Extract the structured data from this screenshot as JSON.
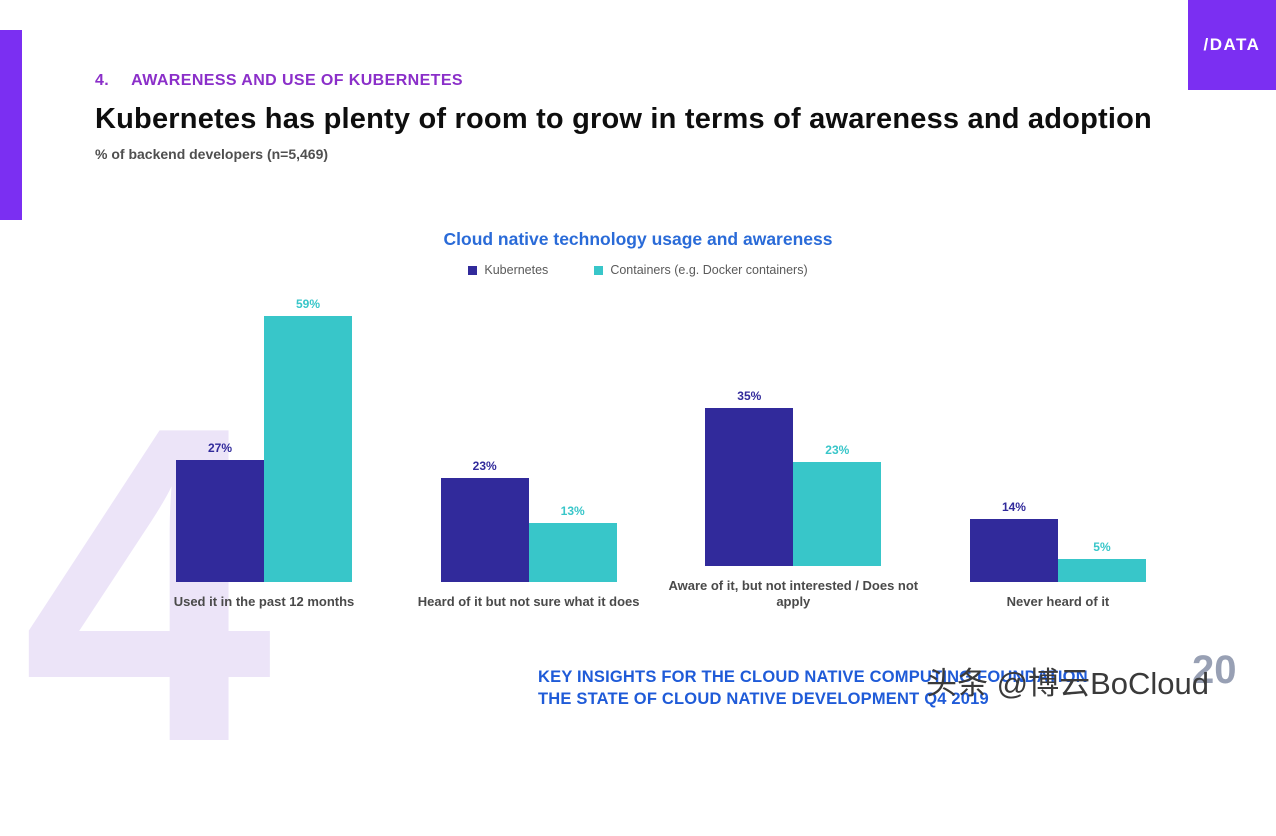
{
  "colors": {
    "brand_purple": "#7B2FF2",
    "section_purple": "#8B2FC9",
    "kubernetes_bar": "#312A9B",
    "containers_bar": "#38C6C9",
    "chart_title_blue": "#2A6BD8",
    "footer_blue": "#1F5BD8",
    "watermark_purple": "#ECE4F8"
  },
  "logo": {
    "text": "/DATA"
  },
  "header": {
    "section_number": "4.",
    "section_title": "AWARENESS AND USE OF KUBERNETES",
    "title": "Kubernetes has plenty of room to grow in terms of awareness and adoption",
    "subtitle": "% of backend developers (n=5,469)"
  },
  "chart_data": {
    "type": "bar",
    "title": "Cloud native technology usage and awareness",
    "categories": [
      "Used it in the past 12 months",
      "Heard of it but not sure what it does",
      "Aware of it, but not interested / Does not apply",
      "Never heard of it"
    ],
    "series": [
      {
        "name": "Kubernetes",
        "color": "#312A9B",
        "values": [
          27,
          23,
          35,
          14
        ]
      },
      {
        "name": "Containers (e.g. Docker containers)",
        "color": "#38C6C9",
        "values": [
          59,
          13,
          23,
          5
        ]
      }
    ],
    "value_suffix": "%",
    "ylim": [
      0,
      60
    ],
    "legend_position": "top",
    "grid": false
  },
  "footer": {
    "line1": "KEY INSIGHTS FOR THE CLOUD NATIVE COMPUTING FOUNDATION",
    "line2": "THE STATE OF CLOUD NATIVE DEVELOPMENT Q4 2019",
    "page_number": "20"
  },
  "watermarks": {
    "big_number": "4",
    "overlay_text": "头条 @博云BoCloud"
  }
}
